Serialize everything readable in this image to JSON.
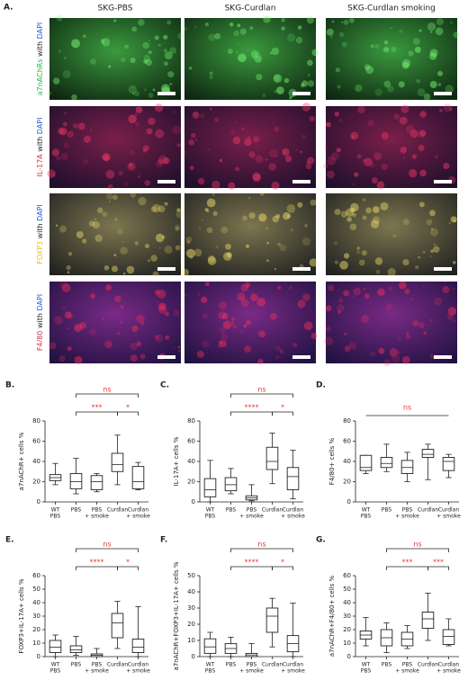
{
  "panel_label": "A.",
  "column_labels": [
    "SKG-PBS",
    "SKG-Curdlan",
    "SKG-Curdlan smoking"
  ],
  "row_labels": [
    {
      "marker": "a7nAChRs",
      "with": "with",
      "stain": "DAPI",
      "marker_color": "#2db34a"
    },
    {
      "marker": "IL-17A",
      "with": "with",
      "stain": "DAPI",
      "marker_color": "#e0303a"
    },
    {
      "marker": "FOXP3",
      "with": "with",
      "stain": "DAPI",
      "marker_color": "#e6c619"
    },
    {
      "marker": "F4/80",
      "with": "with",
      "stain": "DAPI",
      "marker_color": "#e0303a"
    }
  ],
  "chart_data": [
    {
      "type": "box",
      "panel": "B.",
      "ylabel": "a7nAChR+ cells %",
      "categories": [
        [
          "WT",
          "PBS"
        ],
        [
          "PBS"
        ],
        [
          "PBS",
          "+ smoke"
        ],
        [
          "Curdlan"
        ],
        [
          "Curdlan",
          "+ smoke"
        ]
      ],
      "boxes": [
        {
          "min": 17,
          "q1": 21,
          "median": 24,
          "q3": 27,
          "max": 38
        },
        {
          "min": 8,
          "q1": 13,
          "median": 20,
          "q3": 28,
          "max": 43
        },
        {
          "min": 10,
          "q1": 12,
          "median": 20,
          "q3": 26,
          "max": 28
        },
        {
          "min": 17,
          "q1": 30,
          "median": 37,
          "q3": 48,
          "max": 66
        },
        {
          "min": 12,
          "q1": 13,
          "median": 20,
          "q3": 35,
          "max": 39
        }
      ],
      "ylim": [
        0,
        80
      ],
      "yticks": [
        0,
        20,
        40,
        60,
        80
      ],
      "annotations": [
        "ns",
        "***",
        "*"
      ],
      "annotation_color": "#e53935"
    },
    {
      "type": "box",
      "panel": "C.",
      "ylabel": "IL-17A+ cells %",
      "categories": [
        [
          "WT",
          "PBS"
        ],
        [
          "PBS"
        ],
        [
          "PBS",
          "+ smoke"
        ],
        [
          "Curdlan"
        ],
        [
          "Curdlan",
          "+ smoke"
        ]
      ],
      "boxes": [
        {
          "min": 0,
          "q1": 5,
          "median": 12,
          "q3": 23,
          "max": 41
        },
        {
          "min": 8,
          "q1": 11,
          "median": 17,
          "q3": 24,
          "max": 33
        },
        {
          "min": 1,
          "q1": 2,
          "median": 4,
          "q3": 6,
          "max": 17
        },
        {
          "min": 18,
          "q1": 32,
          "median": 40,
          "q3": 54,
          "max": 68
        },
        {
          "min": 3,
          "q1": 12,
          "median": 25,
          "q3": 34,
          "max": 51
        }
      ],
      "ylim": [
        0,
        80
      ],
      "yticks": [
        0,
        20,
        40,
        60,
        80
      ],
      "annotations": [
        "ns",
        "****",
        "*"
      ],
      "annotation_color": "#e53935"
    },
    {
      "type": "box",
      "panel": "D.",
      "ylabel": "F4/80+ cells %",
      "categories": [
        [
          "WT",
          "PBS"
        ],
        [
          "PBS"
        ],
        [
          "PBS",
          "+ smoke"
        ],
        [
          "Curdlan"
        ],
        [
          "Curdlan",
          "+ smoke"
        ]
      ],
      "boxes": [
        {
          "min": 28,
          "q1": 31,
          "median": 34,
          "q3": 46,
          "max": 46
        },
        {
          "min": 30,
          "q1": 34,
          "median": 38,
          "q3": 44,
          "max": 57
        },
        {
          "min": 20,
          "q1": 28,
          "median": 34,
          "q3": 41,
          "max": 49
        },
        {
          "min": 22,
          "q1": 44,
          "median": 47,
          "q3": 52,
          "max": 57
        },
        {
          "min": 24,
          "q1": 31,
          "median": 40,
          "q3": 44,
          "max": 47
        }
      ],
      "ylim": [
        0,
        80
      ],
      "yticks": [
        0,
        20,
        40,
        60,
        80
      ],
      "annotations": [
        "ns"
      ],
      "annotation_color": "#e53935"
    },
    {
      "type": "box",
      "panel": "E.",
      "ylabel": "FOXP3+IL-17A+ cells %",
      "categories": [
        [
          "WT",
          "PBS"
        ],
        [
          "PBS"
        ],
        [
          "PBS",
          "+ smoke"
        ],
        [
          "Curdlan"
        ],
        [
          "Curdlan",
          "+ smoke"
        ]
      ],
      "boxes": [
        {
          "min": 0,
          "q1": 3,
          "median": 7,
          "q3": 12,
          "max": 16
        },
        {
          "min": 1,
          "q1": 3,
          "median": 5,
          "q3": 8,
          "max": 15
        },
        {
          "min": 0,
          "q1": 0,
          "median": 1,
          "q3": 2,
          "max": 6
        },
        {
          "min": 6,
          "q1": 14,
          "median": 25,
          "q3": 32,
          "max": 41
        },
        {
          "min": 0,
          "q1": 3,
          "median": 7,
          "q3": 13,
          "max": 37
        }
      ],
      "ylim": [
        0,
        60
      ],
      "yticks": [
        0,
        10,
        20,
        30,
        40,
        50,
        60
      ],
      "annotations": [
        "ns",
        "****",
        "*"
      ],
      "annotation_color": "#e53935"
    },
    {
      "type": "box",
      "panel": "F.",
      "ylabel": "a7nAChR+FOXP3+IL-17A+ cells %",
      "categories": [
        [
          "WT",
          "PBS"
        ],
        [
          "PBS"
        ],
        [
          "PBS",
          "+ smoke"
        ],
        [
          "Curdlan"
        ],
        [
          "Curdlan",
          "+ smoke"
        ]
      ],
      "boxes": [
        {
          "min": 0,
          "q1": 2,
          "median": 6,
          "q3": 11,
          "max": 15
        },
        {
          "min": 0,
          "q1": 2,
          "median": 5,
          "q3": 8,
          "max": 12
        },
        {
          "min": 0,
          "q1": 0,
          "median": 1,
          "q3": 2,
          "max": 8
        },
        {
          "min": 6,
          "q1": 15,
          "median": 25,
          "q3": 30,
          "max": 36
        },
        {
          "min": 0,
          "q1": 3,
          "median": 8,
          "q3": 13,
          "max": 33
        }
      ],
      "ylim": [
        0,
        50
      ],
      "yticks": [
        0,
        10,
        20,
        30,
        40,
        50
      ],
      "annotations": [
        "ns",
        "****",
        "*"
      ],
      "annotation_color": "#e53935"
    },
    {
      "type": "box",
      "panel": "G.",
      "ylabel": "a7nAChR+F4/80+ cells %",
      "categories": [
        [
          "WT",
          "PBS"
        ],
        [
          "PBS"
        ],
        [
          "PBS",
          "+ smoke"
        ],
        [
          "Curdlan"
        ],
        [
          "Curdlan",
          "+ smoke"
        ]
      ],
      "boxes": [
        {
          "min": 8,
          "q1": 13,
          "median": 16,
          "q3": 19,
          "max": 29
        },
        {
          "min": 3,
          "q1": 8,
          "median": 14,
          "q3": 20,
          "max": 25
        },
        {
          "min": 6,
          "q1": 8,
          "median": 13,
          "q3": 18,
          "max": 23
        },
        {
          "min": 12,
          "q1": 21,
          "median": 28,
          "q3": 33,
          "max": 47
        },
        {
          "min": 8,
          "q1": 9,
          "median": 15,
          "q3": 20,
          "max": 28
        }
      ],
      "ylim": [
        0,
        60
      ],
      "yticks": [
        0,
        10,
        20,
        30,
        40,
        50,
        60
      ],
      "annotations": [
        "ns",
        "***",
        "***"
      ],
      "annotation_color": "#e53935"
    }
  ]
}
